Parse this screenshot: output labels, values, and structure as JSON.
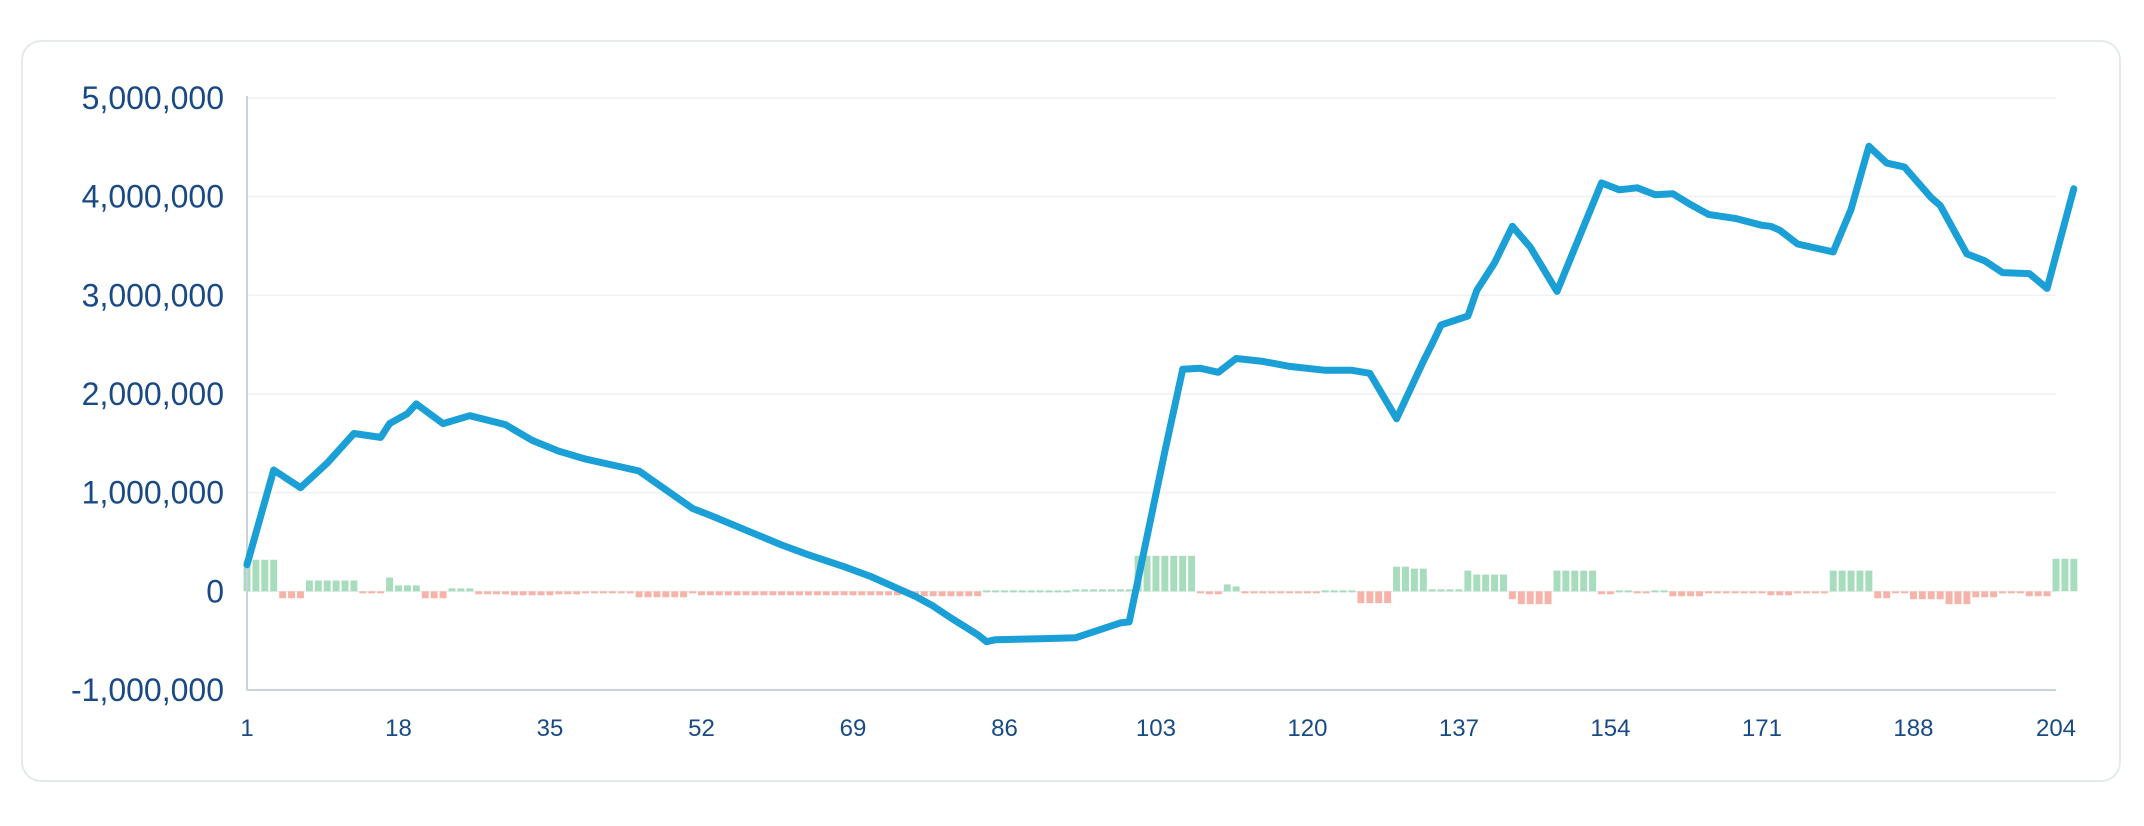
{
  "chart_data": {
    "type": "line",
    "title": "",
    "xlabel": "",
    "ylabel": "",
    "ylim": [
      -1000000,
      5000000
    ],
    "xlim": [
      1,
      204
    ],
    "y_ticks": [
      {
        "value": -1000000,
        "label": "-1,000,000"
      },
      {
        "value": 0,
        "label": "0"
      },
      {
        "value": 1000000,
        "label": "1,000,000"
      },
      {
        "value": 2000000,
        "label": "2,000,000"
      },
      {
        "value": 3000000,
        "label": "3,000,000"
      },
      {
        "value": 4000000,
        "label": "4,000,000"
      },
      {
        "value": 5000000,
        "label": "5,000,000"
      }
    ],
    "x_ticks": [
      {
        "value": 1,
        "label": "1"
      },
      {
        "value": 18,
        "label": "18"
      },
      {
        "value": 35,
        "label": "35"
      },
      {
        "value": 52,
        "label": "52"
      },
      {
        "value": 69,
        "label": "69"
      },
      {
        "value": 86,
        "label": "86"
      },
      {
        "value": 103,
        "label": "103"
      },
      {
        "value": 120,
        "label": "120"
      },
      {
        "value": 137,
        "label": "137"
      },
      {
        "value": 154,
        "label": "154"
      },
      {
        "value": 171,
        "label": "171"
      },
      {
        "value": 188,
        "label": "188"
      },
      {
        "value": 204,
        "label": "204"
      }
    ],
    "grid": true,
    "colors": {
      "line": "#1a9fd6",
      "bar_positive": "#a7dcbd",
      "bar_negative": "#f6b3aa",
      "grid": "#edf0f5",
      "axis": "#c8d1dc",
      "tick_text": "#1a4a85"
    },
    "series": [
      {
        "type": "line",
        "points": [
          [
            1,
            270000
          ],
          [
            4,
            1230000
          ],
          [
            7,
            1050000
          ],
          [
            10,
            1300000
          ],
          [
            13,
            1600000
          ],
          [
            16,
            1560000
          ],
          [
            17,
            1700000
          ],
          [
            19,
            1800000
          ],
          [
            20,
            1900000
          ],
          [
            23,
            1700000
          ],
          [
            26,
            1780000
          ],
          [
            30,
            1690000
          ],
          [
            33,
            1530000
          ],
          [
            36,
            1420000
          ],
          [
            39,
            1340000
          ],
          [
            43,
            1260000
          ],
          [
            45,
            1220000
          ],
          [
            48,
            1030000
          ],
          [
            51,
            840000
          ],
          [
            53,
            770000
          ],
          [
            57,
            620000
          ],
          [
            61,
            470000
          ],
          [
            64,
            370000
          ],
          [
            68,
            250000
          ],
          [
            71,
            150000
          ],
          [
            74,
            30000
          ],
          [
            76,
            -50000
          ],
          [
            78,
            -150000
          ],
          [
            80,
            -270000
          ],
          [
            83,
            -440000
          ],
          [
            84,
            -510000
          ],
          [
            85,
            -490000
          ],
          [
            90,
            -480000
          ],
          [
            94,
            -470000
          ],
          [
            99,
            -320000
          ],
          [
            100,
            -310000
          ],
          [
            104,
            1420000
          ],
          [
            106,
            2250000
          ],
          [
            108,
            2260000
          ],
          [
            110,
            2220000
          ],
          [
            112,
            2360000
          ],
          [
            115,
            2330000
          ],
          [
            118,
            2280000
          ],
          [
            122,
            2240000
          ],
          [
            125,
            2240000
          ],
          [
            127,
            2210000
          ],
          [
            130,
            1750000
          ],
          [
            133,
            2330000
          ],
          [
            134,
            2510000
          ],
          [
            135,
            2700000
          ],
          [
            138,
            2790000
          ],
          [
            139,
            3050000
          ],
          [
            141,
            3330000
          ],
          [
            143,
            3700000
          ],
          [
            145,
            3490000
          ],
          [
            148,
            3040000
          ],
          [
            150,
            3480000
          ],
          [
            153,
            4140000
          ],
          [
            155,
            4070000
          ],
          [
            157,
            4090000
          ],
          [
            159,
            4020000
          ],
          [
            161,
            4030000
          ],
          [
            163,
            3920000
          ],
          [
            165,
            3820000
          ],
          [
            168,
            3780000
          ],
          [
            171,
            3710000
          ],
          [
            172,
            3700000
          ],
          [
            173,
            3660000
          ],
          [
            175,
            3520000
          ],
          [
            177,
            3480000
          ],
          [
            179,
            3440000
          ],
          [
            181,
            3870000
          ],
          [
            183,
            4510000
          ],
          [
            185,
            4340000
          ],
          [
            187,
            4300000
          ],
          [
            190,
            3990000
          ],
          [
            191,
            3910000
          ],
          [
            194,
            3420000
          ],
          [
            196,
            3350000
          ],
          [
            198,
            3230000
          ],
          [
            201,
            3220000
          ],
          [
            203,
            3070000
          ],
          [
            206,
            4080000
          ]
        ]
      },
      {
        "type": "bar",
        "bars": [
          [
            1,
            310000
          ],
          [
            2,
            320000
          ],
          [
            3,
            320000
          ],
          [
            4,
            320000
          ],
          [
            5,
            -70000
          ],
          [
            6,
            -70000
          ],
          [
            7,
            -70000
          ],
          [
            8,
            110000
          ],
          [
            9,
            110000
          ],
          [
            10,
            110000
          ],
          [
            11,
            110000
          ],
          [
            12,
            110000
          ],
          [
            13,
            110000
          ],
          [
            14,
            -20000
          ],
          [
            15,
            -20000
          ],
          [
            16,
            -20000
          ],
          [
            17,
            140000
          ],
          [
            18,
            60000
          ],
          [
            19,
            60000
          ],
          [
            20,
            60000
          ],
          [
            21,
            -70000
          ],
          [
            22,
            -70000
          ],
          [
            23,
            -70000
          ],
          [
            24,
            30000
          ],
          [
            25,
            30000
          ],
          [
            26,
            30000
          ],
          [
            27,
            -30000
          ],
          [
            28,
            -30000
          ],
          [
            29,
            -30000
          ],
          [
            30,
            -30000
          ],
          [
            31,
            -40000
          ],
          [
            32,
            -40000
          ],
          [
            33,
            -40000
          ],
          [
            34,
            -40000
          ],
          [
            35,
            -40000
          ],
          [
            36,
            -30000
          ],
          [
            37,
            -30000
          ],
          [
            38,
            -30000
          ],
          [
            39,
            -20000
          ],
          [
            40,
            -20000
          ],
          [
            41,
            -20000
          ],
          [
            42,
            -20000
          ],
          [
            43,
            -20000
          ],
          [
            44,
            -20000
          ],
          [
            45,
            -60000
          ],
          [
            46,
            -60000
          ],
          [
            47,
            -60000
          ],
          [
            48,
            -60000
          ],
          [
            49,
            -60000
          ],
          [
            50,
            -60000
          ],
          [
            51,
            -20000
          ],
          [
            52,
            -40000
          ],
          [
            53,
            -40000
          ],
          [
            54,
            -40000
          ],
          [
            55,
            -40000
          ],
          [
            56,
            -40000
          ],
          [
            57,
            -40000
          ],
          [
            58,
            -40000
          ],
          [
            59,
            -40000
          ],
          [
            60,
            -40000
          ],
          [
            61,
            -40000
          ],
          [
            62,
            -40000
          ],
          [
            63,
            -40000
          ],
          [
            64,
            -40000
          ],
          [
            65,
            -40000
          ],
          [
            66,
            -40000
          ],
          [
            67,
            -40000
          ],
          [
            68,
            -40000
          ],
          [
            69,
            -40000
          ],
          [
            70,
            -40000
          ],
          [
            71,
            -40000
          ],
          [
            72,
            -40000
          ],
          [
            73,
            -40000
          ],
          [
            74,
            -40000
          ],
          [
            75,
            -40000
          ],
          [
            76,
            -40000
          ],
          [
            77,
            -50000
          ],
          [
            78,
            -50000
          ],
          [
            79,
            -50000
          ],
          [
            80,
            -50000
          ],
          [
            81,
            -50000
          ],
          [
            82,
            -50000
          ],
          [
            83,
            -50000
          ],
          [
            84,
            10000
          ],
          [
            85,
            10000
          ],
          [
            86,
            10000
          ],
          [
            87,
            10000
          ],
          [
            88,
            10000
          ],
          [
            89,
            10000
          ],
          [
            90,
            10000
          ],
          [
            91,
            10000
          ],
          [
            92,
            10000
          ],
          [
            93,
            10000
          ],
          [
            94,
            20000
          ],
          [
            95,
            20000
          ],
          [
            96,
            20000
          ],
          [
            97,
            20000
          ],
          [
            98,
            20000
          ],
          [
            99,
            20000
          ],
          [
            100,
            20000
          ],
          [
            101,
            360000
          ],
          [
            102,
            360000
          ],
          [
            103,
            360000
          ],
          [
            104,
            360000
          ],
          [
            105,
            360000
          ],
          [
            106,
            360000
          ],
          [
            107,
            360000
          ],
          [
            108,
            -10000
          ],
          [
            109,
            -30000
          ],
          [
            110,
            -30000
          ],
          [
            111,
            70000
          ],
          [
            112,
            50000
          ],
          [
            113,
            -20000
          ],
          [
            114,
            -20000
          ],
          [
            115,
            -20000
          ],
          [
            116,
            -20000
          ],
          [
            117,
            -20000
          ],
          [
            118,
            -20000
          ],
          [
            119,
            -20000
          ],
          [
            120,
            -10000
          ],
          [
            121,
            -10000
          ],
          [
            122,
            10000
          ],
          [
            123,
            10000
          ],
          [
            124,
            10000
          ],
          [
            125,
            10000
          ],
          [
            126,
            -120000
          ],
          [
            127,
            -120000
          ],
          [
            128,
            -120000
          ],
          [
            129,
            -120000
          ],
          [
            130,
            250000
          ],
          [
            131,
            250000
          ],
          [
            132,
            230000
          ],
          [
            133,
            230000
          ],
          [
            134,
            20000
          ],
          [
            135,
            20000
          ],
          [
            136,
            20000
          ],
          [
            137,
            20000
          ],
          [
            138,
            210000
          ],
          [
            139,
            170000
          ],
          [
            140,
            170000
          ],
          [
            141,
            170000
          ],
          [
            142,
            170000
          ],
          [
            143,
            -80000
          ],
          [
            144,
            -130000
          ],
          [
            145,
            -130000
          ],
          [
            146,
            -130000
          ],
          [
            147,
            -130000
          ],
          [
            148,
            210000
          ],
          [
            149,
            210000
          ],
          [
            150,
            210000
          ],
          [
            151,
            210000
          ],
          [
            152,
            210000
          ],
          [
            153,
            -30000
          ],
          [
            154,
            -30000
          ],
          [
            155,
            10000
          ],
          [
            156,
            10000
          ],
          [
            157,
            -20000
          ],
          [
            158,
            -20000
          ],
          [
            159,
            10000
          ],
          [
            160,
            10000
          ],
          [
            161,
            -50000
          ],
          [
            162,
            -50000
          ],
          [
            163,
            -50000
          ],
          [
            164,
            -50000
          ],
          [
            165,
            -20000
          ],
          [
            166,
            -20000
          ],
          [
            167,
            -20000
          ],
          [
            168,
            -20000
          ],
          [
            169,
            -20000
          ],
          [
            170,
            -20000
          ],
          [
            171,
            -20000
          ],
          [
            172,
            -40000
          ],
          [
            173,
            -40000
          ],
          [
            174,
            -40000
          ],
          [
            175,
            -20000
          ],
          [
            176,
            -20000
          ],
          [
            177,
            -20000
          ],
          [
            178,
            -20000
          ],
          [
            179,
            210000
          ],
          [
            180,
            210000
          ],
          [
            181,
            210000
          ],
          [
            182,
            210000
          ],
          [
            183,
            210000
          ],
          [
            184,
            -70000
          ],
          [
            185,
            -70000
          ],
          [
            186,
            -10000
          ],
          [
            187,
            -10000
          ],
          [
            188,
            -80000
          ],
          [
            189,
            -80000
          ],
          [
            190,
            -80000
          ],
          [
            191,
            -80000
          ],
          [
            192,
            -130000
          ],
          [
            193,
            -130000
          ],
          [
            194,
            -130000
          ],
          [
            195,
            -60000
          ],
          [
            196,
            -60000
          ],
          [
            197,
            -60000
          ],
          [
            198,
            -10000
          ],
          [
            199,
            -10000
          ],
          [
            200,
            -10000
          ],
          [
            201,
            -50000
          ],
          [
            202,
            -50000
          ],
          [
            203,
            -50000
          ],
          [
            204,
            330000
          ],
          [
            205,
            330000
          ],
          [
            206,
            330000
          ]
        ]
      }
    ]
  }
}
